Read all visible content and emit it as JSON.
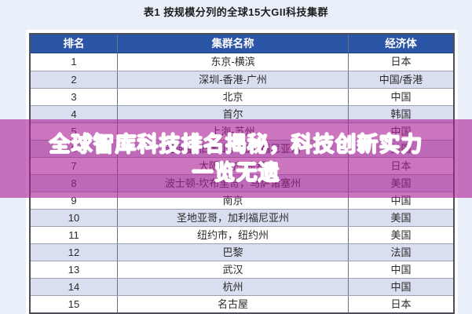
{
  "page": {
    "title": "表1  按规模分列的全球15大GII科技集群"
  },
  "table": {
    "headers": {
      "rank": "排名",
      "cluster": "集群名称",
      "economy": "经济体"
    },
    "rows": [
      {
        "rank": "1",
        "cluster": "东京-横滨",
        "economy": "日本"
      },
      {
        "rank": "2",
        "cluster": "深圳-香港-广州",
        "economy": "中国/香港"
      },
      {
        "rank": "3",
        "cluster": "北京",
        "economy": "中国"
      },
      {
        "rank": "4",
        "cluster": "首尔",
        "economy": "韩国"
      },
      {
        "rank": "5",
        "cluster": "上海-苏州",
        "economy": "中国"
      },
      {
        "rank": "6",
        "cluster": "圣何塞-旧金山，加利福尼亚州",
        "economy": "美国"
      },
      {
        "rank": "7",
        "cluster": "大阪-神户-京都",
        "economy": "日本"
      },
      {
        "rank": "8",
        "cluster": "波士顿-坎布里奇，马萨诸塞州",
        "economy": "美国"
      },
      {
        "rank": "9",
        "cluster": "南京",
        "economy": "中国"
      },
      {
        "rank": "10",
        "cluster": "圣地亚哥，加利福尼亚州",
        "economy": "美国"
      },
      {
        "rank": "11",
        "cluster": "纽约市，纽约州",
        "economy": "美国"
      },
      {
        "rank": "12",
        "cluster": "巴黎",
        "economy": "法国"
      },
      {
        "rank": "13",
        "cluster": "武汉",
        "economy": "中国"
      },
      {
        "rank": "14",
        "cluster": "杭州",
        "economy": "中国"
      },
      {
        "rank": "15",
        "cluster": "名古屋",
        "economy": "日本"
      }
    ]
  },
  "overlay": {
    "line1": "全球智库科技排名揭秘，科技创新实力",
    "line2": "一览无遗"
  },
  "colors": {
    "page_bg": "#e9eff9",
    "header_bg": "#2b55a6",
    "row_alt_bg": "#d9def0",
    "banner_bg": "rgba(172,32,150,0.62)",
    "banner_text": "#ffffff"
  }
}
